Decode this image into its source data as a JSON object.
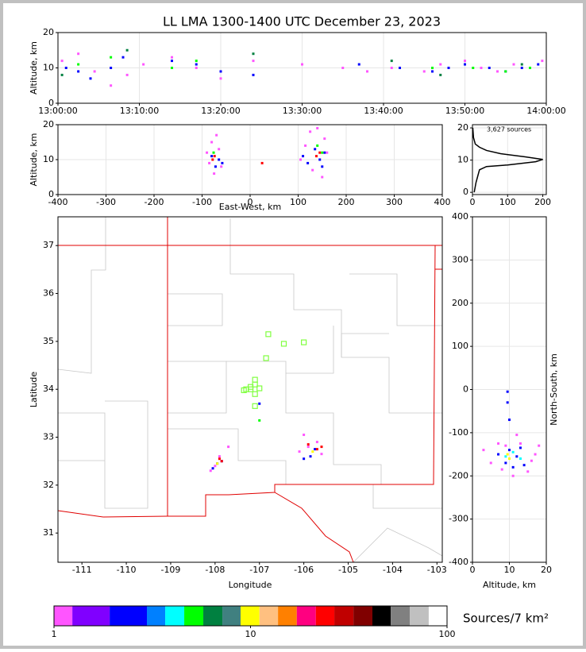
{
  "chart_data": [
    {
      "type": "scatter",
      "title": "LL LMA 1300-1400 UTC December 23, 2023",
      "ylabel": "Altitude, km",
      "xlim": [
        0,
        60
      ],
      "xticks": [
        {
          "value": 0,
          "label": "13:00:00"
        },
        {
          "value": 10,
          "label": "13:10:00"
        },
        {
          "value": 20,
          "label": "13:20:00"
        },
        {
          "value": 30,
          "label": "13:30:00"
        },
        {
          "value": 40,
          "label": "13:40:00"
        },
        {
          "value": 50,
          "label": "13:50:00"
        },
        {
          "value": 60,
          "label": "14:00:00"
        }
      ],
      "ylim": [
        0,
        20
      ],
      "yticks": [
        0,
        10,
        20
      ],
      "grid": true,
      "series": [
        {
          "color": "#ff55ff",
          "x": [
            0.5,
            2.5,
            4.5,
            6.5,
            8.5,
            10.5,
            14,
            17,
            20,
            24,
            30,
            35,
            38,
            41,
            45,
            47,
            50,
            52,
            54,
            56,
            58,
            59.5
          ],
          "y": [
            12,
            14,
            9,
            5,
            8,
            11,
            13,
            10,
            7,
            12,
            11,
            10,
            9,
            10,
            9,
            11,
            12,
            10,
            9,
            11,
            10,
            12
          ]
        },
        {
          "color": "#0000ff",
          "x": [
            1,
            2.5,
            4,
            6.5,
            8,
            14,
            17,
            20,
            24,
            37,
            42,
            46,
            48,
            50,
            53,
            55,
            57,
            59
          ],
          "y": [
            10,
            9,
            7,
            10,
            13,
            12,
            11,
            9,
            8,
            11,
            10,
            9,
            10,
            11,
            10,
            9,
            10,
            11
          ]
        },
        {
          "color": "#00ff00",
          "x": [
            2.5,
            6.5,
            14,
            17,
            46,
            51,
            55,
            58
          ],
          "y": [
            11,
            13,
            10,
            12,
            10,
            10,
            9,
            10
          ]
        },
        {
          "color": "#008040",
          "x": [
            0.5,
            8.5,
            24,
            41,
            47,
            57
          ],
          "y": [
            8,
            15,
            14,
            12,
            8,
            11
          ]
        }
      ]
    },
    {
      "type": "scatter",
      "xlabel": "East-West, km",
      "ylabel": "Altitude, km",
      "xlim": [
        -400,
        400
      ],
      "xticks": [
        -400,
        -300,
        -200,
        -100,
        0,
        100,
        200,
        300,
        400
      ],
      "ylim": [
        0,
        20
      ],
      "yticks": [
        0,
        10,
        20
      ],
      "grid": true,
      "series": [
        {
          "color": "#ff55ff",
          "x": [
            -90,
            -85,
            -80,
            -70,
            -65,
            -60,
            -75,
            105,
            115,
            125,
            140,
            155,
            160,
            150,
            130
          ],
          "y": [
            12,
            9,
            15,
            17,
            13,
            8,
            6,
            10,
            14,
            18,
            19,
            16,
            12,
            5,
            7
          ]
        },
        {
          "color": "#0000ff",
          "x": [
            -80,
            -72,
            -65,
            -58,
            110,
            120,
            135,
            145,
            150,
            155
          ],
          "y": [
            11,
            8,
            10,
            9,
            11,
            9,
            13,
            10,
            8,
            12
          ]
        },
        {
          "color": "#ff0000",
          "x": [
            -78,
            -74,
            25,
            138,
            145
          ],
          "y": [
            10,
            11,
            9,
            11,
            12
          ]
        },
        {
          "color": "#00ff00",
          "x": [
            -76,
            150,
            140
          ],
          "y": [
            12,
            12,
            14
          ]
        }
      ]
    },
    {
      "type": "line",
      "annotation": "3,627 sources",
      "xlim": [
        0,
        210
      ],
      "xticks": [
        0,
        100,
        200
      ],
      "ylim": [
        -0.7,
        21
      ],
      "yticks": [
        0,
        10,
        20
      ],
      "grid": true,
      "series": [
        {
          "color": "#000000",
          "x": [
            5,
            10,
            15,
            20,
            40,
            100,
            180,
            200,
            150,
            80,
            40,
            20,
            8,
            3,
            1
          ],
          "y": [
            0,
            3,
            5,
            7,
            8,
            8.5,
            9.5,
            10.2,
            11,
            12,
            13,
            14,
            15,
            17,
            20
          ]
        }
      ]
    },
    {
      "type": "scatter",
      "xlabel": "Longitude",
      "ylabel": "Latitude",
      "xlim": [
        -111.54,
        -102.88
      ],
      "xticks": [
        -111,
        -110,
        -109,
        -108,
        -107,
        -106,
        -105,
        -104,
        -103
      ],
      "ylim": [
        30.39,
        37.6
      ],
      "yticks": [
        31,
        32,
        33,
        34,
        35,
        36,
        37
      ],
      "grid": false,
      "series": [
        {
          "color": "#ff55ff",
          "x": [
            -108.1,
            -108.0,
            -107.9,
            -107.7,
            -106.1,
            -106.0,
            -105.9,
            -105.7,
            -105.6
          ],
          "y": [
            32.3,
            32.4,
            32.6,
            32.8,
            32.7,
            33.05,
            32.8,
            32.9,
            32.65
          ]
        },
        {
          "color": "#0000ff",
          "x": [
            -108.05,
            -107.95,
            -107.85,
            -106.0,
            -105.85,
            -105.75,
            -107.0
          ],
          "y": [
            32.35,
            32.45,
            32.5,
            32.55,
            32.6,
            32.75,
            33.7
          ]
        },
        {
          "color": "#ff0000",
          "x": [
            -107.9,
            -107.85,
            -105.9,
            -105.7,
            -105.6
          ],
          "y": [
            32.55,
            32.5,
            32.85,
            32.75,
            32.8
          ]
        },
        {
          "color": "#ffff00",
          "x": [
            -107.95,
            -105.8
          ],
          "y": [
            32.45,
            32.7
          ]
        },
        {
          "color": "#00ff00",
          "x": [
            -107.0
          ],
          "y": [
            33.35
          ]
        }
      ],
      "stations": {
        "color": "#80ff40",
        "x": [
          -106.8,
          -106.45,
          -106.0,
          -106.85,
          -107.1,
          -107.1,
          -107.2,
          -107.3,
          -107.35,
          -107.2,
          -107.0,
          -107.1,
          -107.1
        ],
        "y": [
          35.15,
          34.95,
          34.98,
          34.65,
          34.2,
          34.1,
          34.05,
          34.0,
          33.98,
          34.0,
          34.02,
          33.9,
          33.65
        ]
      }
    },
    {
      "type": "scatter",
      "xlabel": "Altitude, km",
      "ylabel": "North-South, km",
      "xlim": [
        0,
        20
      ],
      "xticks": [
        0,
        10,
        20
      ],
      "ylim": [
        -400,
        400
      ],
      "yticks": [
        -400,
        -300,
        -200,
        -100,
        0,
        100,
        200,
        300,
        400
      ],
      "grid": true,
      "series": [
        {
          "color": "#ff55ff",
          "x": [
            3,
            5,
            7,
            9,
            11,
            13,
            15,
            17,
            18,
            8,
            12,
            16
          ],
          "y": [
            -140,
            -170,
            -125,
            -130,
            -200,
            -125,
            -190,
            -150,
            -130,
            -185,
            -105,
            -165
          ]
        },
        {
          "color": "#0000ff",
          "x": [
            7,
            9,
            10,
            11,
            12,
            13,
            14,
            9.5,
            9.5,
            10
          ],
          "y": [
            -150,
            -170,
            -140,
            -180,
            -155,
            -135,
            -175,
            -5,
            -30,
            -70
          ]
        },
        {
          "color": "#00ffff",
          "x": [
            9,
            11,
            13
          ],
          "y": [
            -155,
            -145,
            -160
          ]
        },
        {
          "color": "#ffff00",
          "x": [
            10,
            9.5
          ],
          "y": [
            -160,
            -150
          ]
        }
      ]
    },
    {
      "type": "colorbar",
      "label": "Sources/7 km²",
      "log": true,
      "xlim": [
        1,
        100
      ],
      "xticks": [
        1,
        10,
        100
      ],
      "bounds": [
        1,
        1.24,
        1.92,
        2.97,
        3.68,
        4.6,
        5.75,
        7.19,
        8.9,
        11.1,
        13.8,
        17.2,
        21.5,
        26.7,
        33.4,
        41.7,
        51.7,
        64.6,
        80.7,
        100
      ],
      "colors": [
        "#ff55ff",
        "#8000ff",
        "#0000ff",
        "#0080ff",
        "#00ffff",
        "#00ff00",
        "#008040",
        "#408080",
        "#ffff00",
        "#ffc080",
        "#ff8000",
        "#ff0080",
        "#ff0000",
        "#c00000",
        "#800000",
        "#000000",
        "#808080",
        "#c0c0c0",
        "#ffffff"
      ]
    }
  ]
}
